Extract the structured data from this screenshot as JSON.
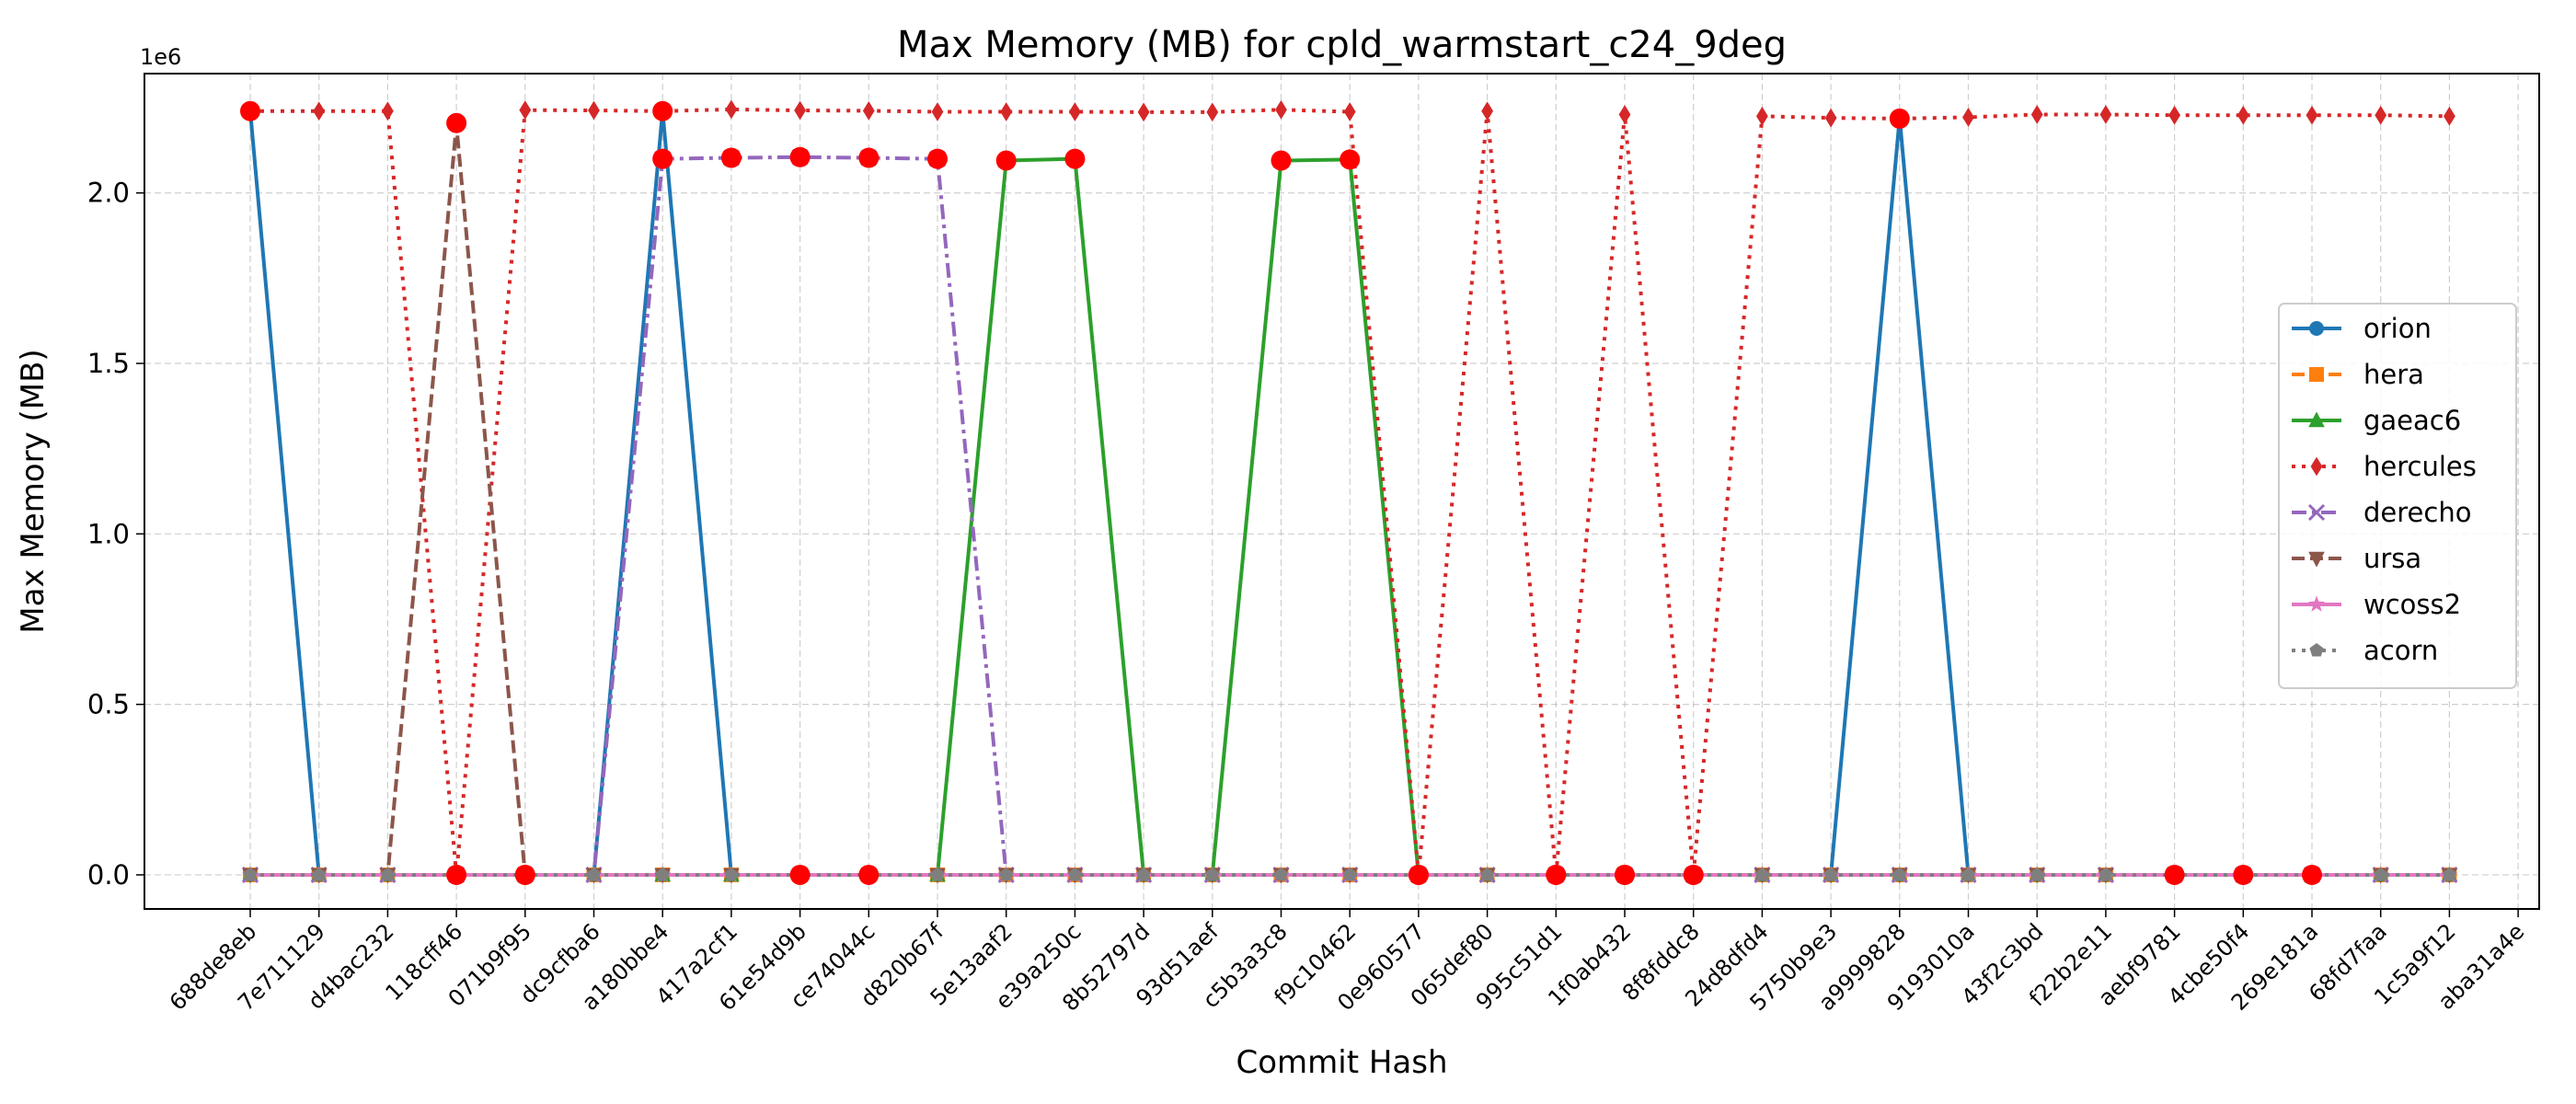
{
  "chart_data": {
    "type": "line",
    "title": "Max Memory (MB) for cpld_warmstart_c24_9deg",
    "xlabel": "Commit Hash",
    "ylabel": "Max Memory (MB)",
    "y_offset_label": "1e6",
    "ylim": [
      -100000,
      2350000
    ],
    "yticks": [
      0,
      500000,
      1000000,
      1500000,
      2000000
    ],
    "ytick_labels": [
      "0.0",
      "0.5",
      "1.0",
      "1.5",
      "2.0"
    ],
    "grid": true,
    "legend_position": "center-right",
    "categories": [
      "688de8eb",
      "7e711129",
      "d4bac232",
      "118cff46",
      "071b9f95",
      "dc9cfba6",
      "a180bbe4",
      "417a2cf1",
      "61e54d9b",
      "ce74044c",
      "d820b67f",
      "5e13aaf2",
      "e39a250c",
      "8b52797d",
      "93d51aef",
      "c5b3a3c8",
      "f9c10462",
      "0e960577",
      "065def80",
      "995c51d1",
      "1f0ab432",
      "8f8fddc8",
      "24d8dfd4",
      "5750b9e3",
      "a9999828",
      "9193010a",
      "43f2c3bd",
      "f22b2e11",
      "aebf9781",
      "4cbe50f4",
      "269e181a",
      "68fd7faa",
      "1c5a9f12",
      "aba31a4e"
    ],
    "series": [
      {
        "name": "orion",
        "color": "#1f77b4",
        "dash": "solid",
        "marker": "circle",
        "values": [
          2240000,
          0,
          0,
          0,
          0,
          0,
          2240000,
          0,
          0,
          0,
          0,
          0,
          0,
          0,
          0,
          0,
          0,
          0,
          0,
          0,
          0,
          0,
          0,
          0,
          2220000,
          0,
          0,
          0,
          0,
          0,
          0,
          0,
          0,
          null
        ]
      },
      {
        "name": "hera",
        "color": "#ff7f0e",
        "dash": "dashed",
        "marker": "square",
        "values": [
          0,
          0,
          0,
          0,
          0,
          0,
          0,
          0,
          0,
          0,
          0,
          0,
          0,
          0,
          0,
          0,
          0,
          0,
          0,
          0,
          0,
          0,
          0,
          0,
          0,
          0,
          0,
          0,
          0,
          0,
          0,
          0,
          0,
          null
        ]
      },
      {
        "name": "gaeac6",
        "color": "#2ca02c",
        "dash": "solid",
        "marker": "triangle",
        "values": [
          0,
          0,
          0,
          0,
          0,
          0,
          0,
          0,
          0,
          0,
          0,
          2095000,
          2100000,
          0,
          0,
          2095000,
          2098000,
          0,
          0,
          0,
          0,
          0,
          0,
          0,
          0,
          0,
          0,
          0,
          0,
          0,
          0,
          0,
          0,
          null
        ]
      },
      {
        "name": "hercules",
        "color": "#d62728",
        "dash": "dotted",
        "marker": "diamond",
        "values": [
          2240000,
          2240000,
          2240000,
          0,
          2243000,
          2242000,
          2240000,
          2245000,
          2242000,
          2241000,
          2238000,
          2238000,
          2238000,
          2237000,
          2237000,
          2244000,
          2238000,
          0,
          2240000,
          0,
          2230000,
          0,
          2225000,
          2220000,
          2218000,
          2222000,
          2230000,
          2230000,
          2228000,
          2228000,
          2228000,
          2228000,
          2225000,
          null
        ]
      },
      {
        "name": "derecho",
        "color": "#9467bd",
        "dash": "dashdot",
        "marker": "x",
        "values": [
          0,
          0,
          0,
          0,
          0,
          0,
          2100000,
          2103000,
          2105000,
          2103000,
          2100000,
          0,
          0,
          0,
          0,
          0,
          0,
          0,
          0,
          0,
          0,
          0,
          0,
          0,
          0,
          0,
          0,
          0,
          0,
          0,
          0,
          0,
          0,
          null
        ]
      },
      {
        "name": "ursa",
        "color": "#8c564b",
        "dash": "dashed",
        "marker": "triangle-down",
        "values": [
          0,
          0,
          0,
          2200000,
          0,
          0,
          0,
          0,
          0,
          0,
          0,
          0,
          0,
          0,
          0,
          0,
          0,
          0,
          0,
          0,
          0,
          0,
          0,
          0,
          0,
          0,
          0,
          0,
          0,
          0,
          0,
          0,
          0,
          null
        ]
      },
      {
        "name": "wcoss2",
        "color": "#e377c2",
        "dash": "solid",
        "marker": "star",
        "values": [
          0,
          0,
          0,
          0,
          0,
          0,
          0,
          0,
          0,
          0,
          0,
          0,
          0,
          0,
          0,
          0,
          0,
          0,
          0,
          0,
          0,
          0,
          0,
          0,
          0,
          0,
          0,
          0,
          0,
          0,
          0,
          0,
          0,
          null
        ]
      },
      {
        "name": "acorn",
        "color": "#7f7f7f",
        "dash": "dotted",
        "marker": "pentagon",
        "values": [
          0,
          0,
          0,
          0,
          0,
          0,
          0,
          0,
          0,
          0,
          0,
          0,
          0,
          0,
          0,
          0,
          0,
          0,
          0,
          0,
          0,
          0,
          0,
          0,
          0,
          0,
          0,
          0,
          0,
          0,
          0,
          0,
          0,
          null
        ]
      }
    ],
    "highlight_points": {
      "color": "#ff0000",
      "indices": [
        0,
        3,
        4,
        6,
        7,
        8,
        9,
        10,
        11,
        12,
        15,
        16,
        17,
        19,
        20,
        21,
        24,
        28,
        29,
        30
      ],
      "values": [
        2240000,
        2205000,
        0,
        2240000,
        2103000,
        2105000,
        2103000,
        2100000,
        2095000,
        2100000,
        2095000,
        2098000,
        0,
        0,
        0,
        0,
        2218000,
        0,
        0,
        0
      ]
    },
    "extra_highlight_points": {
      "indices": [
        3,
        4,
        6,
        8,
        9,
        17,
        19,
        20,
        21
      ],
      "values": [
        0,
        0,
        2100000,
        0,
        0,
        0,
        0,
        0,
        0
      ]
    }
  }
}
